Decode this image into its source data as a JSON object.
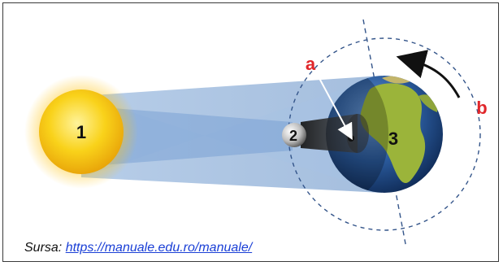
{
  "diagram": {
    "labels": {
      "sun": "1",
      "moon": "2",
      "earth": "3",
      "shadow_pointer": "a",
      "rotation": "b"
    },
    "colors": {
      "sun": "#f7c80a",
      "sun_glow": "#ffd23d",
      "earth_ocean": "#2a5a9c",
      "earth_land": "#9bb43a",
      "light_cone": "#7fa6d4",
      "orbit": "#34558a",
      "label_red": "#e0262a",
      "number_text": "#111111"
    }
  },
  "caption": {
    "prefix": "Sursa: ",
    "link": "https://manuale.edu.ro/manuale/"
  }
}
